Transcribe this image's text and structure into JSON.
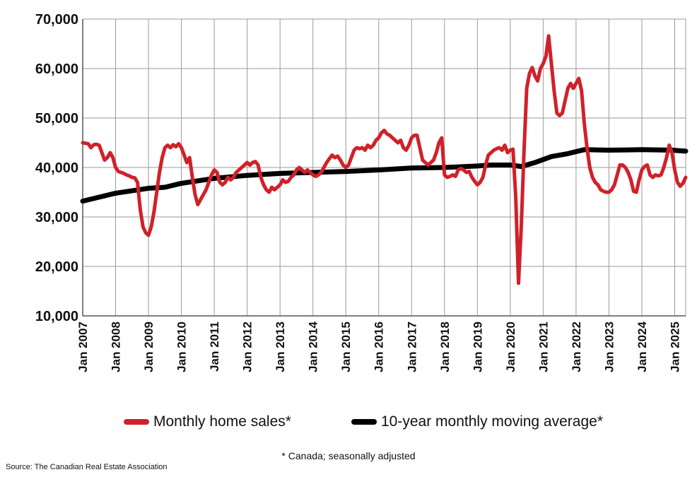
{
  "chart_data": {
    "type": "line",
    "title": "",
    "xlabel": "",
    "ylabel": "",
    "ylim": [
      10000,
      70000
    ],
    "yticks": [
      10000,
      20000,
      30000,
      40000,
      50000,
      60000,
      70000
    ],
    "ytick_labels": [
      "10,000",
      "20,000",
      "30,000",
      "40,000",
      "50,000",
      "60,000",
      "70,000"
    ],
    "xlim": [
      "2007-01",
      "2025-05"
    ],
    "xtick_labels": [
      "Jan 2007",
      "Jan 2008",
      "Jan 2009",
      "Jan 2010",
      "Jan 2011",
      "Jan 2012",
      "Jan 2013",
      "Jan 2014",
      "Jan 2015",
      "Jan 2016",
      "Jan 2017",
      "Jan 2018",
      "Jan 2019",
      "Jan 2020",
      "Jan 2021",
      "Jan 2022",
      "Jan 2023",
      "Jan 2024",
      "Jan 2025"
    ],
    "grid": true,
    "legend_placement": "bottom",
    "series": [
      {
        "name": "Monthly home sales*",
        "color": "#d0212a",
        "points": [
          [
            "2007-01",
            45000
          ],
          [
            "2007-03",
            44800
          ],
          [
            "2007-04",
            44000
          ],
          [
            "2007-05",
            44600
          ],
          [
            "2007-06",
            44700
          ],
          [
            "2007-07",
            44500
          ],
          [
            "2007-08",
            43000
          ],
          [
            "2007-09",
            41500
          ],
          [
            "2007-10",
            42000
          ],
          [
            "2007-11",
            43000
          ],
          [
            "2007-12",
            42000
          ],
          [
            "2008-01",
            40000
          ],
          [
            "2008-02",
            39200
          ],
          [
            "2008-03",
            39000
          ],
          [
            "2008-04",
            38800
          ],
          [
            "2008-05",
            38500
          ],
          [
            "2008-06",
            38300
          ],
          [
            "2008-07",
            38000
          ],
          [
            "2008-08",
            37900
          ],
          [
            "2008-09",
            37000
          ],
          [
            "2008-10",
            31500
          ],
          [
            "2008-11",
            28000
          ],
          [
            "2008-12",
            26800
          ],
          [
            "2009-01",
            26300
          ],
          [
            "2009-02",
            28000
          ],
          [
            "2009-03",
            31000
          ],
          [
            "2009-04",
            35000
          ],
          [
            "2009-05",
            39000
          ],
          [
            "2009-06",
            42000
          ],
          [
            "2009-07",
            44000
          ],
          [
            "2009-08",
            44500
          ],
          [
            "2009-09",
            44000
          ],
          [
            "2009-10",
            44600
          ],
          [
            "2009-11",
            44200
          ],
          [
            "2009-12",
            44800
          ],
          [
            "2010-01",
            44000
          ],
          [
            "2010-02",
            42500
          ],
          [
            "2010-03",
            41000
          ],
          [
            "2010-04",
            42000
          ],
          [
            "2010-05",
            38000
          ],
          [
            "2010-06",
            34500
          ],
          [
            "2010-07",
            32500
          ],
          [
            "2010-08",
            33500
          ],
          [
            "2010-09",
            34500
          ],
          [
            "2010-10",
            35500
          ],
          [
            "2010-11",
            37000
          ],
          [
            "2010-12",
            38500
          ],
          [
            "2011-01",
            39500
          ],
          [
            "2011-02",
            39000
          ],
          [
            "2011-03",
            37000
          ],
          [
            "2011-04",
            36500
          ],
          [
            "2011-05",
            37000
          ],
          [
            "2011-06",
            38000
          ],
          [
            "2011-07",
            37500
          ],
          [
            "2011-08",
            38000
          ],
          [
            "2011-09",
            39000
          ],
          [
            "2011-10",
            39500
          ],
          [
            "2011-11",
            40000
          ],
          [
            "2011-12",
            40500
          ],
          [
            "2012-01",
            41000
          ],
          [
            "2012-02",
            40500
          ],
          [
            "2012-03",
            41000
          ],
          [
            "2012-04",
            41200
          ],
          [
            "2012-05",
            40500
          ],
          [
            "2012-06",
            38000
          ],
          [
            "2012-07",
            36500
          ],
          [
            "2012-08",
            35500
          ],
          [
            "2012-09",
            35000
          ],
          [
            "2012-10",
            36000
          ],
          [
            "2012-11",
            35500
          ],
          [
            "2012-12",
            36000
          ],
          [
            "2013-01",
            36500
          ],
          [
            "2013-02",
            37500
          ],
          [
            "2013-03",
            37000
          ],
          [
            "2013-04",
            37200
          ],
          [
            "2013-05",
            38000
          ],
          [
            "2013-06",
            38500
          ],
          [
            "2013-07",
            39500
          ],
          [
            "2013-08",
            40000
          ],
          [
            "2013-09",
            39500
          ],
          [
            "2013-10",
            39000
          ],
          [
            "2013-11",
            39500
          ],
          [
            "2013-12",
            39000
          ],
          [
            "2014-01",
            38500
          ],
          [
            "2014-02",
            38200
          ],
          [
            "2014-03",
            38500
          ],
          [
            "2014-04",
            39000
          ],
          [
            "2014-05",
            40000
          ],
          [
            "2014-06",
            41000
          ],
          [
            "2014-07",
            41800
          ],
          [
            "2014-08",
            42500
          ],
          [
            "2014-09",
            42000
          ],
          [
            "2014-10",
            42300
          ],
          [
            "2014-11",
            41500
          ],
          [
            "2014-12",
            40500
          ],
          [
            "2015-01",
            40000
          ],
          [
            "2015-02",
            40500
          ],
          [
            "2015-03",
            42000
          ],
          [
            "2015-04",
            43500
          ],
          [
            "2015-05",
            44000
          ],
          [
            "2015-06",
            43800
          ],
          [
            "2015-07",
            44000
          ],
          [
            "2015-08",
            43500
          ],
          [
            "2015-09",
            44500
          ],
          [
            "2015-10",
            44000
          ],
          [
            "2015-11",
            44500
          ],
          [
            "2015-12",
            45500
          ],
          [
            "2016-01",
            46000
          ],
          [
            "2016-02",
            47000
          ],
          [
            "2016-03",
            47500
          ],
          [
            "2016-04",
            46800
          ],
          [
            "2016-05",
            46500
          ],
          [
            "2016-06",
            46000
          ],
          [
            "2016-07",
            45500
          ],
          [
            "2016-08",
            45000
          ],
          [
            "2016-09",
            45500
          ],
          [
            "2016-10",
            44000
          ],
          [
            "2016-11",
            43500
          ],
          [
            "2016-12",
            44500
          ],
          [
            "2017-01",
            46000
          ],
          [
            "2017-02",
            46500
          ],
          [
            "2017-03",
            46500
          ],
          [
            "2017-04",
            44000
          ],
          [
            "2017-05",
            41500
          ],
          [
            "2017-06",
            41000
          ],
          [
            "2017-07",
            40500
          ],
          [
            "2017-08",
            41000
          ],
          [
            "2017-09",
            41500
          ],
          [
            "2017-10",
            43000
          ],
          [
            "2017-11",
            45000
          ],
          [
            "2017-12",
            46000
          ],
          [
            "2018-01",
            38500
          ],
          [
            "2018-02",
            38000
          ],
          [
            "2018-03",
            38200
          ],
          [
            "2018-04",
            38500
          ],
          [
            "2018-05",
            38200
          ],
          [
            "2018-06",
            39500
          ],
          [
            "2018-07",
            39800
          ],
          [
            "2018-08",
            39500
          ],
          [
            "2018-09",
            39000
          ],
          [
            "2018-10",
            39200
          ],
          [
            "2018-11",
            38000
          ],
          [
            "2018-12",
            37200
          ],
          [
            "2019-01",
            36500
          ],
          [
            "2019-02",
            37000
          ],
          [
            "2019-03",
            38000
          ],
          [
            "2019-04",
            40500
          ],
          [
            "2019-05",
            42500
          ],
          [
            "2019-06",
            43000
          ],
          [
            "2019-07",
            43500
          ],
          [
            "2019-08",
            43800
          ],
          [
            "2019-09",
            44000
          ],
          [
            "2019-10",
            43500
          ],
          [
            "2019-11",
            44500
          ],
          [
            "2019-12",
            43000
          ],
          [
            "2020-01",
            43500
          ],
          [
            "2020-02",
            43700
          ],
          [
            "2020-03",
            34000
          ],
          [
            "2020-04",
            16600
          ],
          [
            "2020-05",
            28000
          ],
          [
            "2020-06",
            43000
          ],
          [
            "2020-07",
            56000
          ],
          [
            "2020-08",
            59000
          ],
          [
            "2020-09",
            60200
          ],
          [
            "2020-10",
            58500
          ],
          [
            "2020-11",
            57500
          ],
          [
            "2020-12",
            60000
          ],
          [
            "2021-01",
            61000
          ],
          [
            "2021-02",
            62500
          ],
          [
            "2021-03",
            66600
          ],
          [
            "2021-04",
            61000
          ],
          [
            "2021-05",
            55500
          ],
          [
            "2021-06",
            51000
          ],
          [
            "2021-07",
            50500
          ],
          [
            "2021-08",
            51000
          ],
          [
            "2021-09",
            53500
          ],
          [
            "2021-10",
            56000
          ],
          [
            "2021-11",
            57000
          ],
          [
            "2021-12",
            56000
          ],
          [
            "2022-01",
            57000
          ],
          [
            "2022-02",
            58000
          ],
          [
            "2022-03",
            55500
          ],
          [
            "2022-04",
            49000
          ],
          [
            "2022-05",
            44000
          ],
          [
            "2022-06",
            40000
          ],
          [
            "2022-07",
            38000
          ],
          [
            "2022-08",
            37000
          ],
          [
            "2022-09",
            36500
          ],
          [
            "2022-10",
            35500
          ],
          [
            "2022-11",
            35200
          ],
          [
            "2022-12",
            35000
          ],
          [
            "2023-01",
            35000
          ],
          [
            "2023-02",
            35500
          ],
          [
            "2023-03",
            36500
          ],
          [
            "2023-04",
            38500
          ],
          [
            "2023-05",
            40500
          ],
          [
            "2023-06",
            40500
          ],
          [
            "2023-07",
            40000
          ],
          [
            "2023-08",
            39000
          ],
          [
            "2023-09",
            37500
          ],
          [
            "2023-10",
            35200
          ],
          [
            "2023-11",
            35000
          ],
          [
            "2023-12",
            37500
          ],
          [
            "2024-01",
            39500
          ],
          [
            "2024-02",
            40200
          ],
          [
            "2024-03",
            40500
          ],
          [
            "2024-04",
            38500
          ],
          [
            "2024-05",
            38000
          ],
          [
            "2024-06",
            38500
          ],
          [
            "2024-07",
            38300
          ],
          [
            "2024-08",
            38500
          ],
          [
            "2024-09",
            40000
          ],
          [
            "2024-10",
            42000
          ],
          [
            "2024-11",
            44500
          ],
          [
            "2024-12",
            43000
          ],
          [
            "2025-01",
            39500
          ],
          [
            "2025-02",
            37000
          ],
          [
            "2025-03",
            36200
          ],
          [
            "2025-04",
            36800
          ],
          [
            "2025-05",
            38000
          ]
        ]
      },
      {
        "name": "10-year monthly moving average*",
        "color": "#000000",
        "points": [
          [
            "2007-01",
            33200
          ],
          [
            "2008-01",
            34800
          ],
          [
            "2009-01",
            35800
          ],
          [
            "2009-07",
            36000
          ],
          [
            "2010-01",
            36800
          ],
          [
            "2011-01",
            37800
          ],
          [
            "2012-01",
            38400
          ],
          [
            "2013-01",
            38800
          ],
          [
            "2014-01",
            39000
          ],
          [
            "2015-01",
            39200
          ],
          [
            "2016-01",
            39500
          ],
          [
            "2017-01",
            39900
          ],
          [
            "2018-01",
            40000
          ],
          [
            "2019-01",
            40300
          ],
          [
            "2019-06",
            40500
          ],
          [
            "2020-01",
            40500
          ],
          [
            "2020-05",
            40200
          ],
          [
            "2020-10",
            41000
          ],
          [
            "2021-04",
            42200
          ],
          [
            "2021-10",
            42800
          ],
          [
            "2022-04",
            43600
          ],
          [
            "2023-01",
            43500
          ],
          [
            "2024-01",
            43600
          ],
          [
            "2024-12",
            43500
          ],
          [
            "2025-05",
            43300
          ]
        ]
      }
    ]
  },
  "legend": {
    "items": [
      {
        "label": "Monthly home sales*",
        "color": "#d0212a"
      },
      {
        "label": "10-year monthly moving average*",
        "color": "#000000"
      }
    ]
  },
  "footnote": "* Canada; seasonally adjusted",
  "source": "Source: The Canadian Real Estate Association"
}
